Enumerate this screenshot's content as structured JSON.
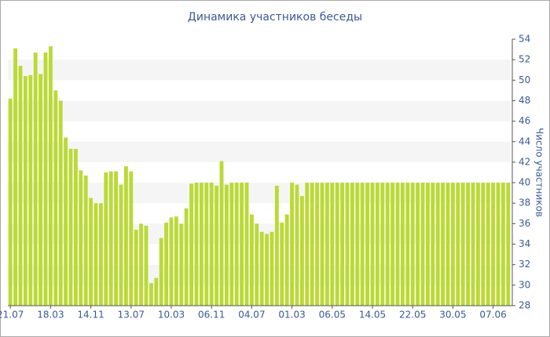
{
  "chart_data": {
    "type": "bar",
    "title": "Динамика участников беседы",
    "y_label": "Число участников",
    "categories": [
      "21.07",
      null,
      null,
      null,
      null,
      null,
      null,
      null,
      "18.03",
      null,
      null,
      null,
      null,
      null,
      null,
      null,
      "14.11",
      null,
      null,
      null,
      null,
      null,
      null,
      null,
      "13.07",
      null,
      null,
      null,
      null,
      null,
      null,
      null,
      "10.03",
      null,
      null,
      null,
      null,
      null,
      null,
      null,
      "06.11",
      null,
      null,
      null,
      null,
      null,
      null,
      null,
      "04.07",
      null,
      null,
      null,
      null,
      null,
      null,
      null,
      "01.03",
      null,
      null,
      null,
      null,
      null,
      null,
      null,
      "06.05",
      null,
      null,
      null,
      null,
      null,
      null,
      null,
      "14.05",
      null,
      null,
      null,
      null,
      null,
      null,
      null,
      "22.05",
      null,
      null,
      null,
      null,
      null,
      null,
      null,
      "30.05",
      null,
      null,
      null,
      null,
      null,
      null,
      null,
      "07.06",
      null,
      null,
      null
    ],
    "values": [
      48.2,
      53.1,
      51.4,
      50.4,
      50.5,
      52.7,
      50.6,
      52.7,
      53.3,
      49.0,
      48.0,
      44.4,
      43.3,
      43.3,
      41.2,
      40.7,
      38.5,
      38.0,
      38.0,
      41.0,
      41.1,
      41.1,
      39.8,
      41.6,
      41.1,
      35.4,
      36.0,
      35.8,
      30.2,
      30.7,
      34.6,
      36.1,
      36.6,
      36.7,
      36.0,
      37.5,
      39.9,
      40,
      40,
      40,
      40,
      39.7,
      42.1,
      39.8,
      40,
      40,
      40,
      40,
      36.9,
      36.0,
      35.2,
      35.0,
      35.2,
      39.7,
      36.1,
      36.9,
      40,
      39.8,
      38.7,
      40,
      40,
      40,
      40,
      40,
      40,
      40,
      40,
      40,
      40,
      40,
      40,
      40,
      40,
      40,
      40,
      40,
      40,
      40,
      40,
      40,
      40,
      40,
      40,
      40,
      40,
      40,
      40,
      40,
      40,
      40,
      40,
      40,
      40,
      40,
      40,
      40,
      40,
      40,
      40,
      40
    ],
    "color": "#bada35",
    "ylim": [
      28,
      54
    ],
    "yticks": [
      28,
      30,
      32,
      34,
      36,
      38,
      40,
      42,
      44,
      46,
      48,
      50,
      52,
      54
    ],
    "y_axis_side": "right",
    "grid": "bands"
  }
}
